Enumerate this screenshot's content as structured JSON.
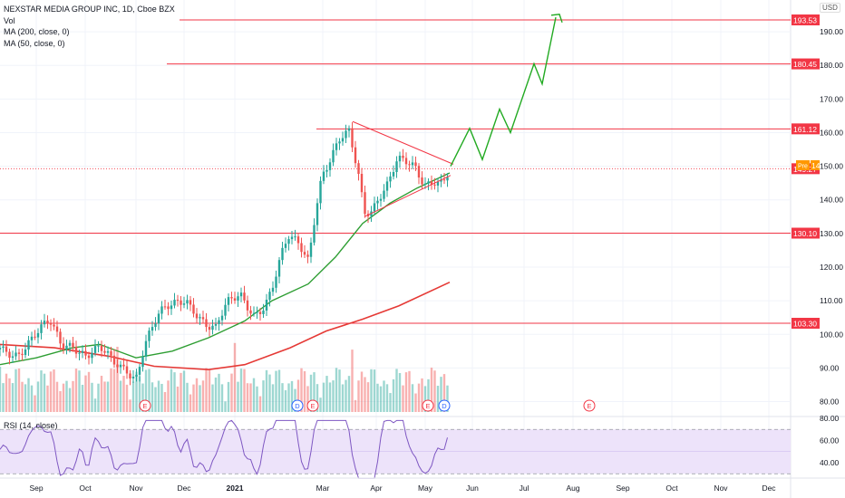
{
  "header": {
    "title": "NEXSTAR MEDIA GROUP INC, 1D, Cboe BZX",
    "indicators": [
      "Vol",
      "MA (200, close, 0)",
      "MA (50, close, 0)"
    ],
    "currency": "USD",
    "rsi_label": "RSI (14, close)"
  },
  "colors": {
    "up": "#26a69a",
    "down": "#ef5350",
    "level": "#f23645",
    "ma50": "#2e9e33",
    "ma200": "#e53935",
    "projection": "#22aa22",
    "triangle": "#f23645",
    "rsi": "#7e57c2",
    "rsi_band": "#ede3fa",
    "pre": "#ff9800"
  },
  "chart_data": {
    "type": "candlestick",
    "symbol": "NEXSTAR MEDIA GROUP INC",
    "interval": "1D",
    "price_axis": {
      "ticks": [
        200,
        190,
        180,
        170,
        160,
        150,
        140,
        130,
        120,
        110,
        100,
        90,
        80
      ]
    },
    "time_axis": {
      "ticks": [
        "Sep",
        "Oct",
        "Nov",
        "Dec",
        "2021",
        "Mar",
        "Apr",
        "May",
        "Jun",
        "Jul",
        "Aug",
        "Sep",
        "Oct",
        "Nov",
        "Dec"
      ]
    },
    "levels": [
      {
        "price": 193.53,
        "label": "193.53"
      },
      {
        "price": 180.45,
        "label": "180.45"
      },
      {
        "price": 161.12,
        "label": "161.12"
      },
      {
        "price": 130.1,
        "label": "130.10"
      },
      {
        "price": 103.3,
        "label": "103.30"
      }
    ],
    "current_price": {
      "price": 149.27,
      "label": "149.27"
    },
    "premarket_price": {
      "price": 149.37,
      "label": "149.37",
      "tag": "Pre"
    },
    "events": [
      {
        "date": "Nov",
        "type": "E"
      },
      {
        "date": "Feb",
        "type": "D"
      },
      {
        "date": "Feb",
        "type": "E"
      },
      {
        "date": "May",
        "type": "E"
      },
      {
        "date": "May",
        "type": "D"
      },
      {
        "date": "Aug",
        "type": "E"
      }
    ],
    "rsi": {
      "ticks": [
        80.0,
        60.0,
        40.0
      ],
      "upper_band": 70,
      "lower_band": 30
    }
  }
}
